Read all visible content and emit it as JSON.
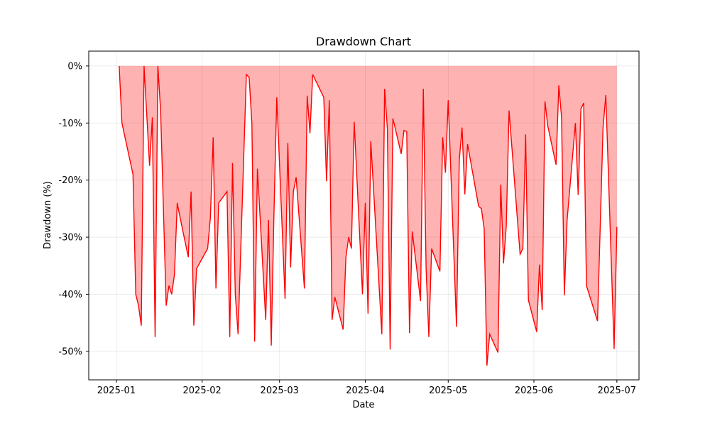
{
  "chart_data": {
    "type": "area",
    "title": "Drawdown Chart",
    "xlabel": "Date",
    "ylabel": "Drawdown (%)",
    "grid": true,
    "colors": {
      "line": "#ff0000",
      "fill": "#ff0000",
      "fill_opacity": 0.3
    },
    "xlim": [
      "2024-12-22",
      "2025-07-09"
    ],
    "ylim": [
      -55,
      2.6
    ],
    "x_ticks": [
      {
        "date": "2025-01-01",
        "label": "2025-01"
      },
      {
        "date": "2025-02-01",
        "label": "2025-02"
      },
      {
        "date": "2025-03-01",
        "label": "2025-03"
      },
      {
        "date": "2025-04-01",
        "label": "2025-04"
      },
      {
        "date": "2025-05-01",
        "label": "2025-05"
      },
      {
        "date": "2025-06-01",
        "label": "2025-06"
      },
      {
        "date": "2025-07-01",
        "label": "2025-07"
      }
    ],
    "y_ticks": [
      {
        "value": 0,
        "label": "0%"
      },
      {
        "value": -10,
        "label": "-10%"
      },
      {
        "value": -20,
        "label": "-20%"
      },
      {
        "value": -30,
        "label": "-30%"
      },
      {
        "value": -40,
        "label": "-40%"
      },
      {
        "value": -50,
        "label": "-50%"
      }
    ],
    "series": [
      {
        "x": [
          "2025-01-02",
          "2025-01-03",
          "2025-01-07",
          "2025-01-08",
          "2025-01-09",
          "2025-01-10",
          "2025-01-11",
          "2025-01-13",
          "2025-01-14",
          "2025-01-15",
          "2025-01-16",
          "2025-01-17",
          "2025-01-19",
          "2025-01-20",
          "2025-01-21",
          "2025-01-22",
          "2025-01-23",
          "2025-01-24",
          "2025-01-27",
          "2025-01-28",
          "2025-01-29",
          "2025-01-30",
          "2025-02-03",
          "2025-02-04",
          "2025-02-05",
          "2025-02-06",
          "2025-02-07",
          "2025-02-10",
          "2025-02-11",
          "2025-02-12",
          "2025-02-13",
          "2025-02-14",
          "2025-02-17",
          "2025-02-18",
          "2025-02-19",
          "2025-02-20",
          "2025-02-21",
          "2025-02-24",
          "2025-02-25",
          "2025-02-26",
          "2025-02-27",
          "2025-02-28",
          "2025-03-03",
          "2025-03-04",
          "2025-03-05",
          "2025-03-06",
          "2025-03-07",
          "2025-03-10",
          "2025-03-11",
          "2025-03-12",
          "2025-03-13",
          "2025-03-17",
          "2025-03-18",
          "2025-03-19",
          "2025-03-20",
          "2025-03-21",
          "2025-03-24",
          "2025-03-25",
          "2025-03-26",
          "2025-03-27",
          "2025-03-28",
          "2025-03-31",
          "2025-04-01",
          "2025-04-02",
          "2025-04-03",
          "2025-04-07",
          "2025-04-08",
          "2025-04-09",
          "2025-04-10",
          "2025-04-11",
          "2025-04-14",
          "2025-04-15",
          "2025-04-16",
          "2025-04-17",
          "2025-04-18",
          "2025-04-21",
          "2025-04-22",
          "2025-04-23",
          "2025-04-24",
          "2025-04-25",
          "2025-04-28",
          "2025-04-29",
          "2025-04-30",
          "2025-05-01",
          "2025-05-04",
          "2025-05-05",
          "2025-05-06",
          "2025-05-07",
          "2025-05-08",
          "2025-05-12",
          "2025-05-13",
          "2025-05-14",
          "2025-05-15",
          "2025-05-16",
          "2025-05-19",
          "2025-05-20",
          "2025-05-21",
          "2025-05-22",
          "2025-05-23",
          "2025-05-27",
          "2025-05-28",
          "2025-05-29",
          "2025-05-30",
          "2025-06-02",
          "2025-06-03",
          "2025-06-04",
          "2025-06-05",
          "2025-06-06",
          "2025-06-09",
          "2025-06-10",
          "2025-06-11",
          "2025-06-12",
          "2025-06-13",
          "2025-06-16",
          "2025-06-17",
          "2025-06-18",
          "2025-06-19",
          "2025-06-20",
          "2025-06-24",
          "2025-06-26",
          "2025-06-27",
          "2025-06-30",
          "2025-07-01"
        ],
        "y": [
          0,
          -10,
          -19,
          -40,
          -42,
          -45.5,
          0,
          -17.5,
          -9,
          -47.5,
          0,
          -8,
          -42,
          -38.5,
          -40,
          -36.5,
          -24,
          -26.5,
          -33.5,
          -22,
          -45.5,
          -35.5,
          -32,
          -26.5,
          -12.5,
          -39,
          -24,
          -22,
          -47.5,
          -17,
          -40,
          -47,
          -1.5,
          -2,
          -10,
          -48.3,
          -18,
          -44.5,
          -27,
          -49,
          -25.5,
          -5.5,
          -40.8,
          -13.5,
          -35.3,
          -22,
          -19.5,
          -39,
          -5.2,
          -11.8,
          -1.5,
          -5.5,
          -20.2,
          -6,
          -44.5,
          -40.5,
          -46.2,
          -33.5,
          -30,
          -32,
          -9.8,
          -40,
          -24,
          -43.4,
          -13.2,
          -47,
          -4,
          -11,
          -49.7,
          -9.2,
          -15.4,
          -11.3,
          -11.5,
          -46.8,
          -29,
          -41.2,
          -4,
          -35.5,
          -47.5,
          -32,
          -36,
          -12.5,
          -18.7,
          -6,
          -45.7,
          -16.5,
          -10.8,
          -22.5,
          -13.7,
          -24.6,
          -25,
          -28.5,
          -52.5,
          -47,
          -50.2,
          -20.8,
          -34.6,
          -28,
          -7.8,
          -33,
          -32,
          -12,
          -41,
          -46.6,
          -34.8,
          -42.8,
          -6.2,
          -10.5,
          -17.3,
          -3.4,
          -9,
          -40.2,
          -27,
          -10,
          -22.6,
          -7.5,
          -6.5,
          -38.5,
          -44.7,
          -10.8,
          -5.1,
          -49.6,
          -28.2
        ]
      }
    ]
  }
}
